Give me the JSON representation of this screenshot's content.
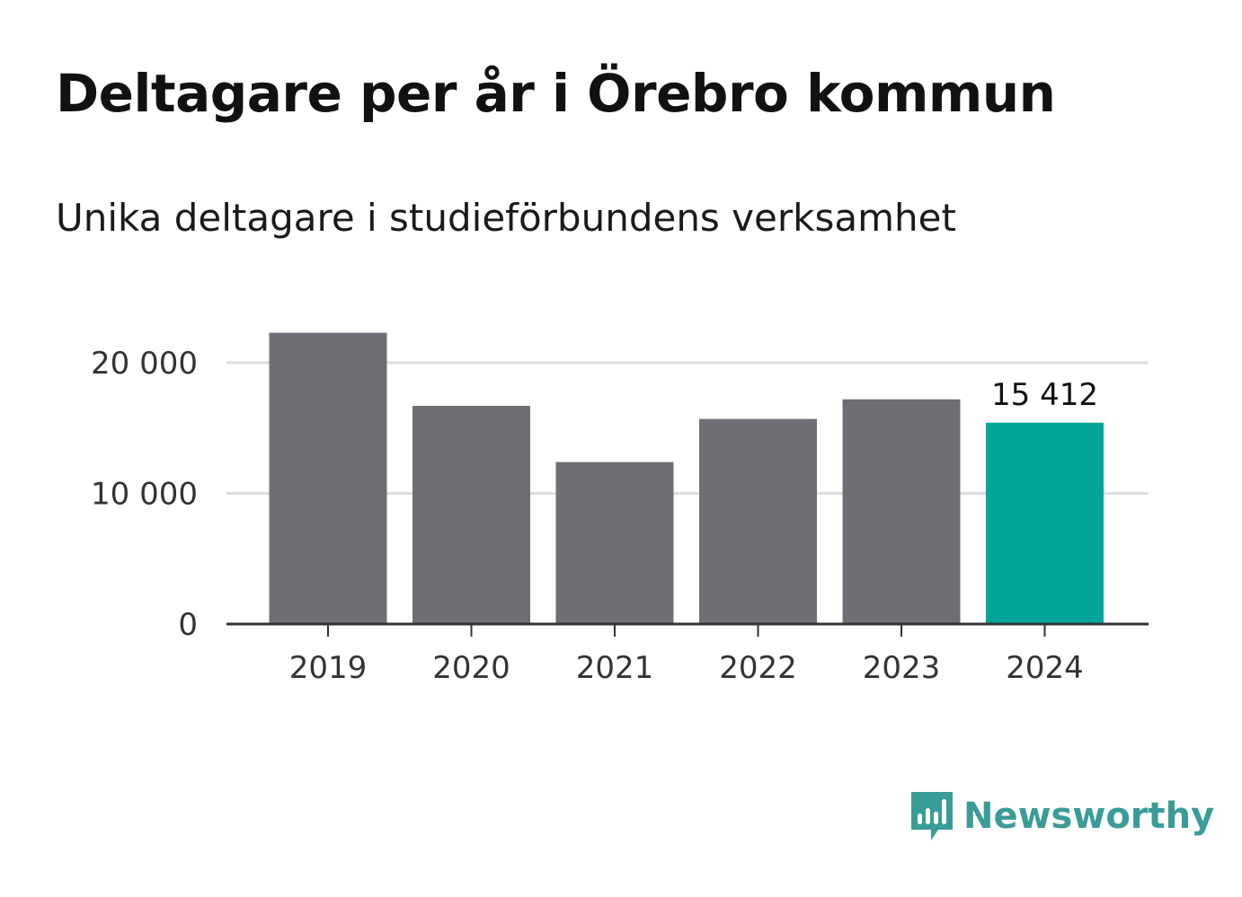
{
  "title": "Deltagare per år i Örebro kommun",
  "subtitle": "Unika deltagare i studieförbundens verksamhet",
  "colors": {
    "bar_default": "#6f6e74",
    "bar_highlight": "#00a499",
    "grid": "#dddddd",
    "axis": "#333333",
    "logo": "#3a9c97"
  },
  "logo": {
    "icon": "newsworthy-icon",
    "text": "Newsworthy"
  },
  "chart_data": {
    "type": "bar",
    "categories": [
      "2019",
      "2020",
      "2021",
      "2022",
      "2023",
      "2024"
    ],
    "values": [
      22300,
      16700,
      12400,
      15700,
      17200,
      15412
    ],
    "highlight_index": 5,
    "data_labels": [
      "",
      "",
      "",
      "",
      "",
      "15 412"
    ],
    "y_ticks": [
      0,
      10000,
      20000
    ],
    "y_tick_labels": [
      "0",
      "10 000",
      "20 000"
    ],
    "ylim": [
      0,
      22300
    ],
    "grid": true,
    "xlabel": "",
    "ylabel": ""
  }
}
